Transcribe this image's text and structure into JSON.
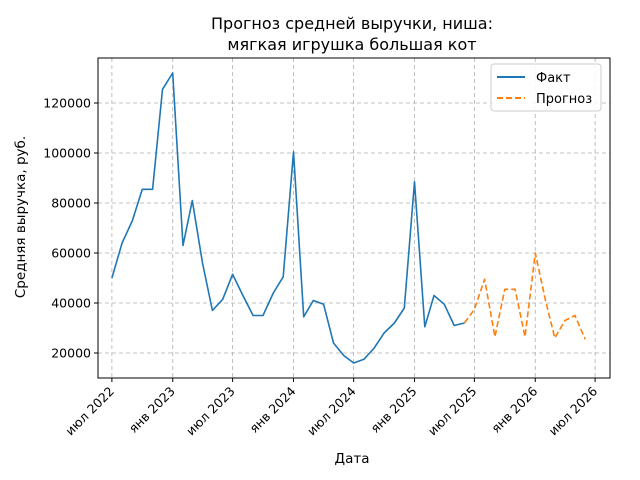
{
  "chart_data": {
    "type": "line",
    "title_lines": [
      "Прогноз средней выручки, ниша:",
      "мягкая игрушка большая кот"
    ],
    "xlabel": "Дата",
    "ylabel": "Средняя выручка, руб.",
    "xlim": [
      "2022-05-20",
      "2026-08-15"
    ],
    "ylim": [
      10000,
      138000
    ],
    "y_ticks": [
      20000,
      40000,
      60000,
      80000,
      100000,
      120000
    ],
    "x_ticks": [
      {
        "date": "2022-07-01",
        "label": "июл 2022"
      },
      {
        "date": "2023-01-01",
        "label": "янв 2023"
      },
      {
        "date": "2023-07-01",
        "label": "июл 2023"
      },
      {
        "date": "2024-01-01",
        "label": "янв 2024"
      },
      {
        "date": "2024-07-01",
        "label": "июл 2024"
      },
      {
        "date": "2025-01-01",
        "label": "янв 2025"
      },
      {
        "date": "2025-07-01",
        "label": "июл 2025"
      },
      {
        "date": "2026-01-01",
        "label": "янв 2026"
      },
      {
        "date": "2026-07-01",
        "label": "июл 2026"
      }
    ],
    "grid": true,
    "legend_position": "top-right",
    "series": [
      {
        "name": "Факт",
        "color": "#1f77b4",
        "style": "solid",
        "points": [
          [
            "2022-07-01",
            50000
          ],
          [
            "2022-08-01",
            64000
          ],
          [
            "2022-09-01",
            73000
          ],
          [
            "2022-10-01",
            85500
          ],
          [
            "2022-11-01",
            85500
          ],
          [
            "2022-12-01",
            125500
          ],
          [
            "2023-01-01",
            132000
          ],
          [
            "2023-02-01",
            63000
          ],
          [
            "2023-03-01",
            81000
          ],
          [
            "2023-04-01",
            56000
          ],
          [
            "2023-05-01",
            37000
          ],
          [
            "2023-06-01",
            41500
          ],
          [
            "2023-07-01",
            51500
          ],
          [
            "2023-08-01",
            43000
          ],
          [
            "2023-09-01",
            35000
          ],
          [
            "2023-10-01",
            35000
          ],
          [
            "2023-11-01",
            44000
          ],
          [
            "2023-12-01",
            50500
          ],
          [
            "2024-01-01",
            100500
          ],
          [
            "2024-02-01",
            34500
          ],
          [
            "2024-03-01",
            41000
          ],
          [
            "2024-04-01",
            39500
          ],
          [
            "2024-05-01",
            24000
          ],
          [
            "2024-06-01",
            19000
          ],
          [
            "2024-07-01",
            16000
          ],
          [
            "2024-08-01",
            17500
          ],
          [
            "2024-09-01",
            22000
          ],
          [
            "2024-10-01",
            28000
          ],
          [
            "2024-11-01",
            32000
          ],
          [
            "2024-12-01",
            38000
          ],
          [
            "2025-01-01",
            88500
          ],
          [
            "2025-02-01",
            30500
          ],
          [
            "2025-03-01",
            43000
          ],
          [
            "2025-04-01",
            39500
          ],
          [
            "2025-05-01",
            31000
          ],
          [
            "2025-06-01",
            32000
          ]
        ]
      },
      {
        "name": "Прогноз",
        "color": "#ff7f0e",
        "style": "dashed",
        "points": [
          [
            "2025-06-01",
            32000
          ],
          [
            "2025-07-01",
            37500
          ],
          [
            "2025-08-01",
            49500
          ],
          [
            "2025-09-01",
            26500
          ],
          [
            "2025-10-01",
            45500
          ],
          [
            "2025-11-01",
            45500
          ],
          [
            "2025-12-01",
            26500
          ],
          [
            "2026-01-01",
            60000
          ],
          [
            "2026-02-01",
            41000
          ],
          [
            "2026-03-01",
            26000
          ],
          [
            "2026-04-01",
            33000
          ],
          [
            "2026-05-01",
            35000
          ],
          [
            "2026-06-01",
            25500
          ]
        ]
      }
    ]
  }
}
